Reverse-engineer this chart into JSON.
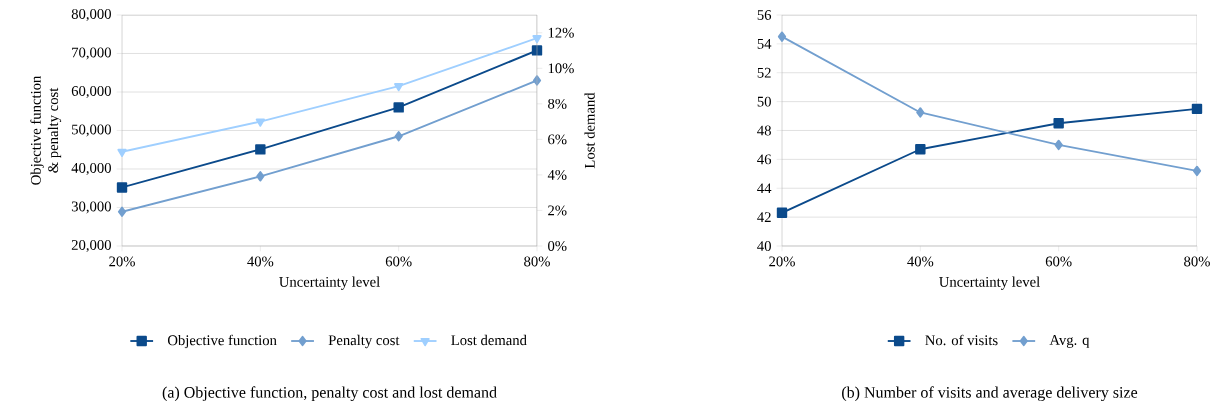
{
  "chart_data": [
    {
      "type": "line",
      "title": "(a) Objective function, penalty cost and lost demand",
      "xlabel": "Uncertainty level",
      "ylabel": "Objective function\n& penalty cost",
      "y2label": "Lost demand",
      "categories": [
        "20%",
        "40%",
        "60%",
        "80%"
      ],
      "series": [
        {
          "name": "Objective function",
          "color": "#0b4a8b",
          "marker": "square",
          "values": [
            35200,
            45100,
            56000,
            70800
          ]
        },
        {
          "name": "Penalty cost",
          "color": "#729fcf",
          "marker": "diamond",
          "values": [
            28900,
            38100,
            48500,
            63000
          ]
        },
        {
          "name": "Lost demand",
          "color": "#9fcfff",
          "marker": "triangle",
          "axis": "y2",
          "values": [
            5.3,
            7.0,
            9.0,
            11.7
          ]
        }
      ],
      "ylim": [
        20000,
        80000
      ],
      "yticks": [
        {
          "value": 20000,
          "label": "20,000"
        },
        {
          "value": 30000,
          "label": "30,000"
        },
        {
          "value": 40000,
          "label": "40,000"
        },
        {
          "value": 50000,
          "label": "50,000"
        },
        {
          "value": 60000,
          "label": "60,000"
        },
        {
          "value": 70000,
          "label": "70,000"
        },
        {
          "value": 80000,
          "label": "80,000"
        }
      ],
      "y2lim": [
        0,
        13
      ],
      "y2ticks": [
        {
          "value": 0,
          "label": "0%"
        },
        {
          "value": 2,
          "label": "2%"
        },
        {
          "value": 4,
          "label": "4%"
        },
        {
          "value": 6,
          "label": "6%"
        },
        {
          "value": 8,
          "label": "8%"
        },
        {
          "value": 10,
          "label": "10%"
        },
        {
          "value": 12,
          "label": "12%"
        }
      ],
      "grid": "y",
      "legend": "bottom",
      "line_style": "solid"
    },
    {
      "type": "line",
      "title": "(b) Number of visits and average delivery size",
      "xlabel": "Uncertainty level",
      "categories": [
        "20%",
        "40%",
        "60%",
        "80%"
      ],
      "series": [
        {
          "name": "No. of visits",
          "color": "#0b4a8b",
          "marker": "square",
          "values": [
            42.3,
            46.7,
            48.5,
            49.5
          ]
        },
        {
          "name": "Avg. q",
          "color": "#729fcf",
          "marker": "diamond",
          "values": [
            54.5,
            49.25,
            47.0,
            45.2
          ]
        }
      ],
      "ylim": [
        40,
        56
      ],
      "yticks": [
        40,
        42,
        44,
        46,
        48,
        50,
        52,
        54,
        56
      ],
      "grid": "y",
      "legend": "bottom",
      "line_style": "solid"
    }
  ]
}
